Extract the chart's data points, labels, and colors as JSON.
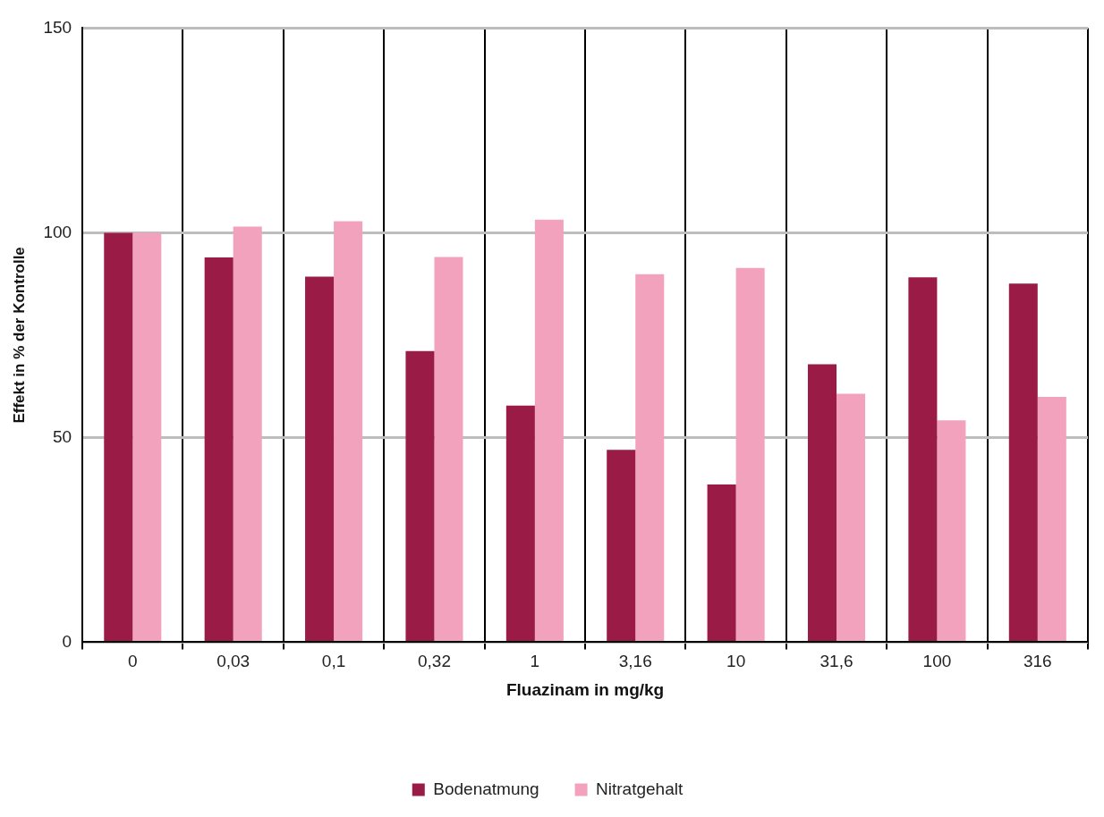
{
  "chart_data": {
    "type": "bar",
    "xlabel": "Fluazinam in mg/kg",
    "ylabel": "Effekt in % der Kontrolle",
    "categories": [
      "0",
      "0,03",
      "0,1",
      "0,32",
      "1",
      "3,16",
      "10",
      "31,6",
      "100",
      "316"
    ],
    "series": [
      {
        "name": "Bodenatmung",
        "color": "#9b1b47",
        "values": [
          100,
          94,
          89.3,
          71.1,
          57.8,
          47,
          38.5,
          67.9,
          89.1,
          87.6
        ]
      },
      {
        "name": "Nitratgehalt",
        "color": "#f2a2bd",
        "values": [
          100,
          101.5,
          102.8,
          94.1,
          103.2,
          89.9,
          91.4,
          60.7,
          54.2,
          59.9
        ]
      }
    ],
    "ylim": [
      0,
      150
    ],
    "yticks": [
      0,
      50,
      100,
      150
    ],
    "grid": true,
    "legend": "bottom"
  }
}
